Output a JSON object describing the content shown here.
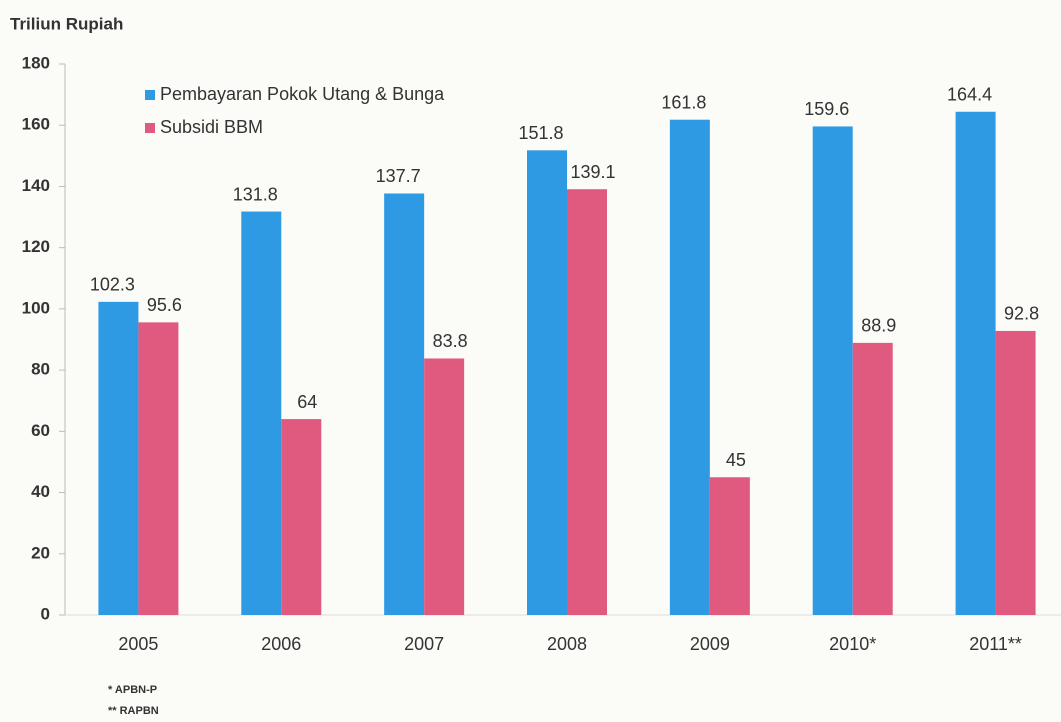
{
  "chart_data": {
    "type": "bar",
    "y_axis_label": "Triliun Rupiah",
    "categories": [
      "2005",
      "2006",
      "2007",
      "2008",
      "2009",
      "2010*",
      "2011**"
    ],
    "series": [
      {
        "name": "Pembayaran Pokok Utang & Bunga",
        "color": "#2f9ae4",
        "values": [
          102.3,
          131.8,
          137.7,
          151.8,
          161.8,
          159.6,
          164.4
        ]
      },
      {
        "name": "Subsidi BBM",
        "color": "#e05a80",
        "values": [
          95.6,
          64,
          83.8,
          139.1,
          45,
          88.9,
          92.8
        ]
      }
    ],
    "ylim": [
      0,
      180
    ],
    "yticks": [
      0,
      20,
      40,
      60,
      80,
      100,
      120,
      140,
      160,
      180
    ],
    "legend": "top-left",
    "footnotes": [
      "* APBN-P",
      "** RAPBN"
    ]
  }
}
